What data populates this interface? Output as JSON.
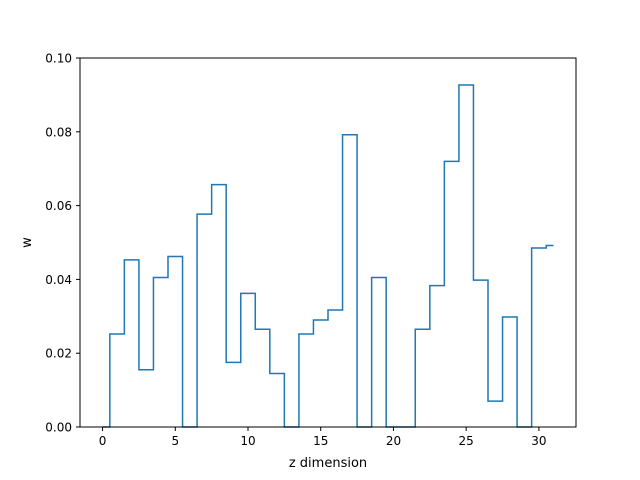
{
  "chart_data": {
    "type": "line",
    "drawstyle": "steps-mid",
    "xlabel": "z dimension",
    "ylabel": "w",
    "xlim": [
      -1.55,
      32.55
    ],
    "ylim": [
      0.0,
      0.1
    ],
    "xticks": [
      0,
      5,
      10,
      15,
      20,
      25,
      30
    ],
    "xtick_labels": [
      "0",
      "5",
      "10",
      "15",
      "20",
      "25",
      "30"
    ],
    "yticks": [
      0.0,
      0.02,
      0.04,
      0.06,
      0.08,
      0.1
    ],
    "ytick_labels": [
      "0.00",
      "0.02",
      "0.04",
      "0.06",
      "0.08",
      "0.10"
    ],
    "grid": false,
    "series_color": "#1f77b4",
    "x": [
      0,
      1,
      2,
      3,
      4,
      5,
      6,
      7,
      8,
      9,
      10,
      11,
      12,
      13,
      14,
      15,
      16,
      17,
      18,
      19,
      20,
      21,
      22,
      23,
      24,
      25,
      26,
      27,
      28,
      29,
      30,
      31
    ],
    "values": [
      0.0,
      0.0252,
      0.0453,
      0.0155,
      0.0405,
      0.0462,
      0.0,
      0.0577,
      0.0657,
      0.0175,
      0.0362,
      0.0265,
      0.0145,
      0.0,
      0.0252,
      0.029,
      0.0317,
      0.0792,
      0.0,
      0.0405,
      0.0,
      0.0,
      0.0265,
      0.0383,
      0.072,
      0.0927,
      0.0398,
      0.007,
      0.0298,
      0.0,
      0.0485,
      0.0492
    ]
  }
}
